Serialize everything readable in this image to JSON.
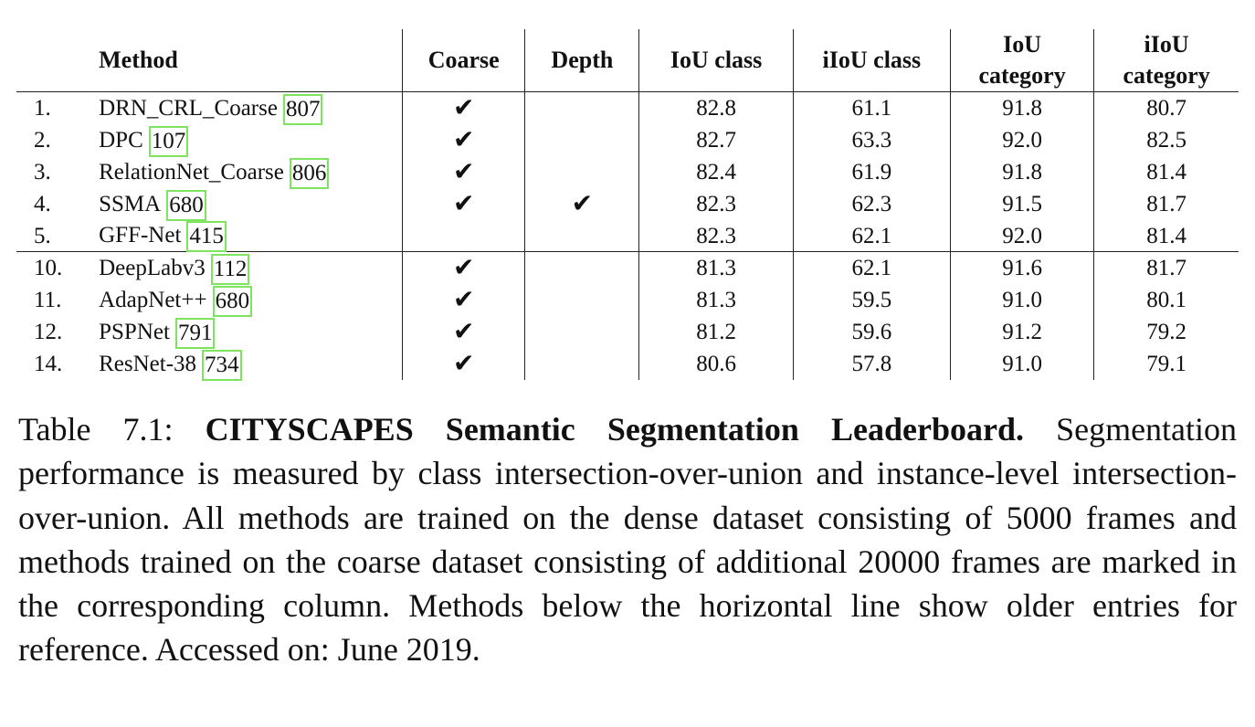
{
  "table": {
    "headers": {
      "method": "Method",
      "coarse": "Coarse",
      "depth": "Depth",
      "iou_class": "IoU class",
      "iiou_class": "iIoU class",
      "iou_category_1": "IoU",
      "iou_category_2": "category",
      "iiou_category_1": "iIoU",
      "iiou_category_2": "category"
    },
    "check_glyph": "✔",
    "rows": [
      {
        "idx": "1.",
        "method": "DRN_CRL_Coarse",
        "cite": "807",
        "coarse": true,
        "depth": false,
        "iou_class": "82.8",
        "iiou_class": "61.1",
        "iou_category": "91.8",
        "iiou_category": "80.7"
      },
      {
        "idx": "2.",
        "method": "DPC",
        "cite": "107",
        "coarse": true,
        "depth": false,
        "iou_class": "82.7",
        "iiou_class": "63.3",
        "iou_category": "92.0",
        "iiou_category": "82.5"
      },
      {
        "idx": "3.",
        "method": "RelationNet_Coarse",
        "cite": "806",
        "coarse": true,
        "depth": false,
        "iou_class": "82.4",
        "iiou_class": "61.9",
        "iou_category": "91.8",
        "iiou_category": "81.4"
      },
      {
        "idx": "4.",
        "method": "SSMA",
        "cite": "680",
        "coarse": true,
        "depth": true,
        "iou_class": "82.3",
        "iiou_class": "62.3",
        "iou_category": "91.5",
        "iiou_category": "81.7"
      },
      {
        "idx": "5.",
        "method": "GFF-Net",
        "cite": "415",
        "coarse": false,
        "depth": false,
        "iou_class": "82.3",
        "iiou_class": "62.1",
        "iou_category": "92.0",
        "iiou_category": "81.4"
      },
      {
        "idx": "10.",
        "method": "DeepLabv3",
        "cite": "112",
        "coarse": true,
        "depth": false,
        "iou_class": "81.3",
        "iiou_class": "62.1",
        "iou_category": "91.6",
        "iiou_category": "81.7"
      },
      {
        "idx": "11.",
        "method": "AdapNet++",
        "cite": "680",
        "coarse": true,
        "depth": false,
        "iou_class": "81.3",
        "iiou_class": "59.5",
        "iou_category": "91.0",
        "iiou_category": "80.1"
      },
      {
        "idx": "12.",
        "method": "PSPNet",
        "cite": "791",
        "coarse": true,
        "depth": false,
        "iou_class": "81.2",
        "iiou_class": "59.6",
        "iou_category": "91.2",
        "iiou_category": "79.2"
      },
      {
        "idx": "14.",
        "method": "ResNet-38",
        "cite": "734",
        "coarse": true,
        "depth": false,
        "iou_class": "80.6",
        "iiou_class": "57.8",
        "iou_category": "91.0",
        "iiou_category": "79.1"
      }
    ],
    "cite_box_color": "#7ee35e"
  },
  "caption": {
    "label": "Table 7.1:",
    "title": "CITYSCAPES Semantic Segmentation Leaderboard.",
    "body": "Segmentation performance is measured by class intersection-over-union and instance-level intersection-over-union. All methods are trained on the dense dataset consisting of 5000 frames and methods trained on the coarse dataset consisting of additional 20000 frames are marked in the corresponding column. Methods below the horizontal line show older entries for reference. Accessed on: June 2019."
  }
}
